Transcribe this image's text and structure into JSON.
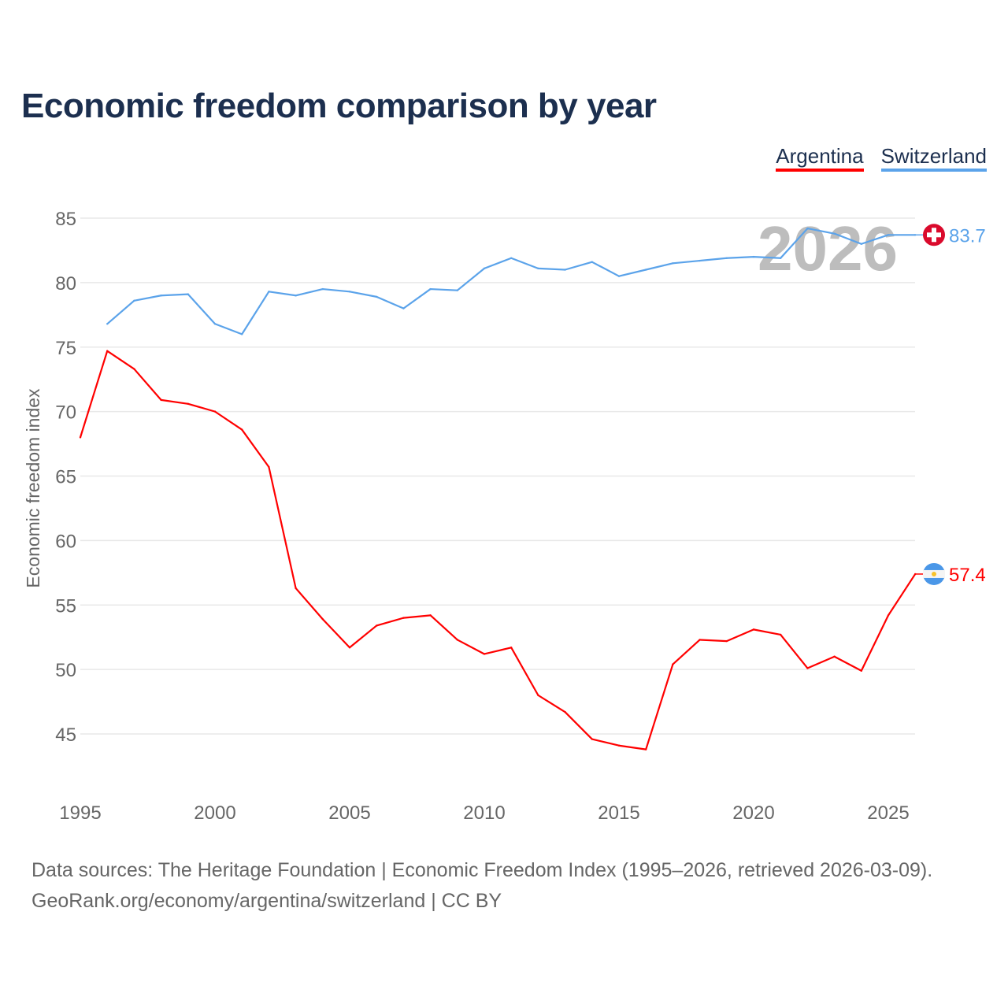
{
  "title": "Economic freedom comparison by year",
  "footer": {
    "line1": "Data sources: The Heritage Foundation | Economic Freedom Index (1995–2026, retrieved 2026-03-09).",
    "line2": "GeoRank.org/economy/argentina/switzerland | CC BY"
  },
  "chart_data": {
    "type": "line",
    "title": "Economic freedom comparison by year",
    "xlabel": "",
    "ylabel": "Economic freedom index",
    "xlim": [
      1995,
      2026
    ],
    "ylim": [
      41,
      86.5
    ],
    "xticks": [
      1995,
      2000,
      2005,
      2010,
      2015,
      2020,
      2025
    ],
    "yticks": [
      45,
      50,
      55,
      60,
      65,
      70,
      75,
      80,
      85
    ],
    "grid": true,
    "legend_placement": "top-right",
    "watermark_year": "2026",
    "series": [
      {
        "name": "Argentina",
        "color": "#ff0000",
        "end_label": "57.4",
        "flag": "argentina-flag",
        "x": [
          1995,
          1996,
          1997,
          1998,
          1999,
          2000,
          2001,
          2002,
          2003,
          2004,
          2005,
          2006,
          2007,
          2008,
          2009,
          2010,
          2011,
          2012,
          2013,
          2014,
          2015,
          2016,
          2017,
          2018,
          2019,
          2020,
          2021,
          2022,
          2023,
          2024,
          2025,
          2026
        ],
        "values": [
          68.0,
          74.7,
          73.3,
          70.9,
          70.6,
          70.0,
          68.6,
          65.7,
          56.3,
          53.9,
          51.7,
          53.4,
          54.0,
          54.2,
          52.3,
          51.2,
          51.7,
          48.0,
          46.7,
          44.6,
          44.1,
          43.8,
          50.4,
          52.3,
          52.2,
          53.1,
          52.7,
          50.1,
          51.0,
          49.9,
          54.2,
          57.4
        ]
      },
      {
        "name": "Switzerland",
        "color": "#5ba3ea",
        "end_label": "83.7",
        "flag": "switzerland-flag",
        "x": [
          1996,
          1997,
          1998,
          1999,
          2000,
          2001,
          2002,
          2003,
          2004,
          2005,
          2006,
          2007,
          2008,
          2009,
          2010,
          2011,
          2012,
          2013,
          2014,
          2015,
          2016,
          2017,
          2018,
          2019,
          2020,
          2021,
          2022,
          2023,
          2024,
          2025,
          2026
        ],
        "values": [
          76.8,
          78.6,
          79.0,
          79.1,
          76.8,
          76.0,
          79.3,
          79.0,
          79.5,
          79.3,
          78.9,
          78.0,
          79.5,
          79.4,
          81.1,
          81.9,
          81.1,
          81.0,
          81.6,
          80.5,
          81.0,
          81.5,
          81.7,
          81.9,
          82.0,
          81.9,
          84.2,
          83.8,
          83.0,
          83.7,
          83.7
        ]
      }
    ]
  }
}
